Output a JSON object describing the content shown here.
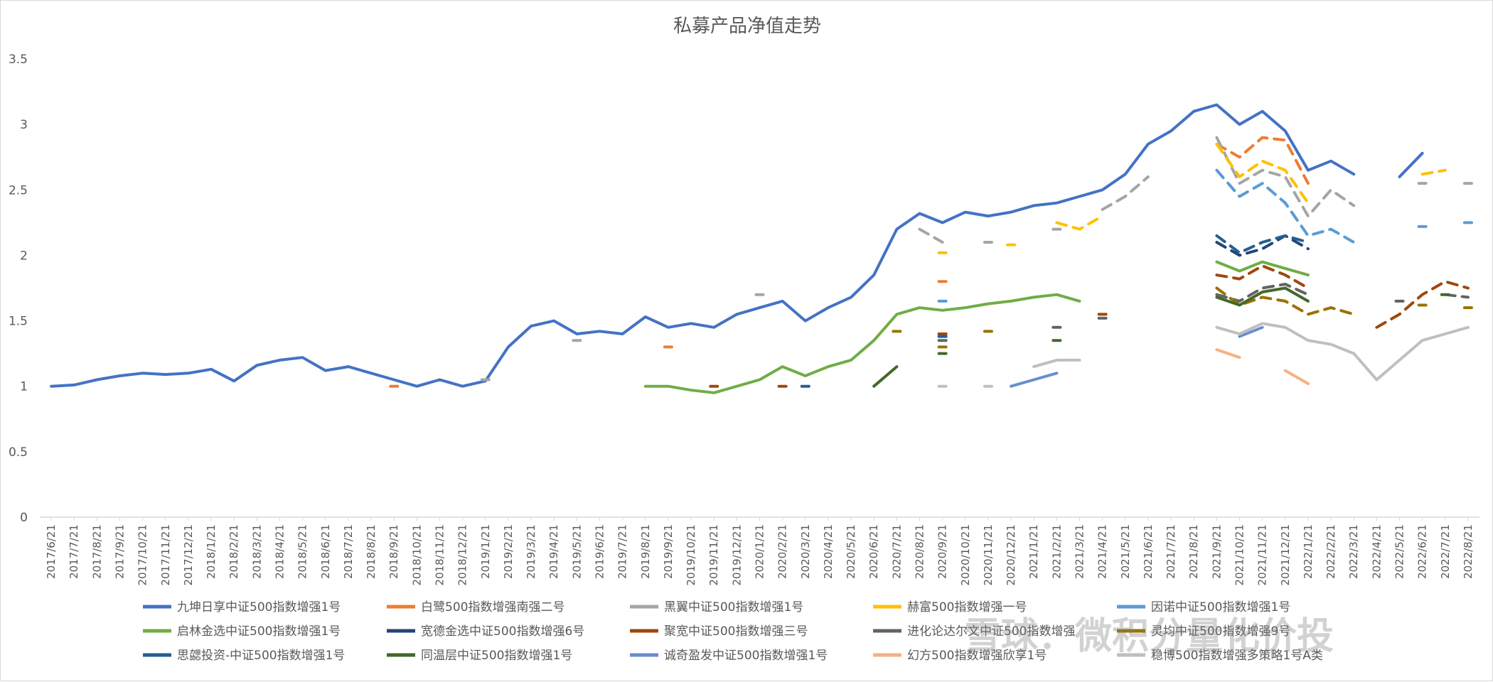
{
  "chart_data": {
    "type": "line",
    "title": "私募产品净值走势",
    "xlabel": "",
    "ylabel": "",
    "ylim": [
      0,
      3.5
    ],
    "yticks": [
      "0",
      "0.5",
      "1",
      "1.5",
      "2",
      "2.5",
      "3",
      "3.5"
    ],
    "grid": false,
    "legend_position": "bottom",
    "x": [
      "2017/6/21",
      "2017/7/21",
      "2017/8/21",
      "2017/9/21",
      "2017/10/21",
      "2017/11/21",
      "2017/12/21",
      "2018/1/21",
      "2018/2/21",
      "2018/3/21",
      "2018/4/21",
      "2018/5/21",
      "2018/6/21",
      "2018/7/21",
      "2018/8/21",
      "2018/9/21",
      "2018/10/21",
      "2018/11/21",
      "2018/12/21",
      "2019/1/21",
      "2019/2/21",
      "2019/3/21",
      "2019/4/21",
      "2019/5/21",
      "2019/6/21",
      "2019/7/21",
      "2019/8/21",
      "2019/9/21",
      "2019/10/21",
      "2019/11/21",
      "2019/12/21",
      "2020/1/21",
      "2020/2/21",
      "2020/3/21",
      "2020/4/21",
      "2020/5/21",
      "2020/6/21",
      "2020/7/21",
      "2020/8/21",
      "2020/9/21",
      "2020/10/21",
      "2020/11/21",
      "2020/12/21",
      "2021/1/21",
      "2021/2/21",
      "2021/3/21",
      "2021/4/21",
      "2021/5/21",
      "2021/6/21",
      "2021/7/21",
      "2021/8/21",
      "2021/9/21",
      "2021/10/21",
      "2021/11/21",
      "2021/12/21",
      "2022/1/21",
      "2022/2/21",
      "2022/3/21",
      "2022/4/21",
      "2022/5/21",
      "2022/6/21",
      "2022/7/21",
      "2022/8/21"
    ],
    "series": [
      {
        "name": "九坤日享中证500指数增强1号",
        "color": "#4472c4",
        "style": "solid",
        "values": [
          1.0,
          1.01,
          1.05,
          1.08,
          1.1,
          1.09,
          1.1,
          1.13,
          1.04,
          1.16,
          1.2,
          1.22,
          1.12,
          1.15,
          1.1,
          1.05,
          1.0,
          1.05,
          1.0,
          1.04,
          1.3,
          1.46,
          1.5,
          1.4,
          1.42,
          1.4,
          1.53,
          1.45,
          1.48,
          1.45,
          1.55,
          1.6,
          1.65,
          1.5,
          1.6,
          1.68,
          1.85,
          2.2,
          2.32,
          2.25,
          2.33,
          2.3,
          2.33,
          2.38,
          2.4,
          2.45,
          2.5,
          2.62,
          2.85,
          2.95,
          3.1,
          3.15,
          3.0,
          3.1,
          2.95,
          2.65,
          2.72,
          2.62,
          null,
          2.6,
          2.78,
          null,
          null
        ]
      },
      {
        "name": "白鹭500指数增强南强二号",
        "color": "#ed7d31",
        "style": "dashed",
        "values": [
          null,
          null,
          null,
          null,
          null,
          null,
          null,
          null,
          null,
          null,
          null,
          null,
          null,
          null,
          null,
          1.0,
          null,
          null,
          null,
          null,
          null,
          null,
          null,
          null,
          null,
          null,
          null,
          1.3,
          null,
          null,
          null,
          null,
          null,
          null,
          null,
          null,
          null,
          null,
          null,
          1.8,
          null,
          null,
          null,
          null,
          null,
          null,
          null,
          null,
          null,
          null,
          null,
          2.85,
          2.75,
          2.9,
          2.88,
          2.55,
          null,
          null,
          null,
          null,
          null,
          null,
          null
        ]
      },
      {
        "name": "黑翼中证500指数增强1号",
        "color": "#a5a5a5",
        "style": "dashed",
        "values": [
          null,
          null,
          null,
          null,
          null,
          null,
          null,
          null,
          null,
          null,
          null,
          null,
          null,
          null,
          null,
          null,
          null,
          null,
          null,
          1.05,
          null,
          null,
          null,
          1.35,
          null,
          null,
          null,
          null,
          null,
          null,
          null,
          1.7,
          null,
          null,
          null,
          null,
          null,
          null,
          2.2,
          2.1,
          null,
          2.1,
          null,
          null,
          2.2,
          null,
          2.35,
          2.45,
          2.6,
          null,
          null,
          2.9,
          2.55,
          2.65,
          2.6,
          2.3,
          2.5,
          2.38,
          null,
          null,
          2.55,
          null,
          2.55
        ]
      },
      {
        "name": "赫富500指数增强一号",
        "color": "#ffc000",
        "style": "dashed",
        "values": [
          null,
          null,
          null,
          null,
          null,
          null,
          null,
          null,
          null,
          null,
          null,
          null,
          null,
          null,
          null,
          null,
          null,
          null,
          null,
          null,
          null,
          null,
          null,
          null,
          null,
          null,
          null,
          null,
          null,
          null,
          null,
          null,
          null,
          null,
          null,
          null,
          null,
          null,
          null,
          2.02,
          null,
          null,
          2.08,
          null,
          2.25,
          2.2,
          2.3,
          null,
          null,
          null,
          null,
          2.85,
          2.6,
          2.72,
          2.65,
          2.4,
          null,
          null,
          null,
          null,
          2.62,
          2.65,
          null
        ]
      },
      {
        "name": "因诺中证500指数增强1号",
        "color": "#5b9bd5",
        "style": "dashed",
        "values": [
          null,
          null,
          null,
          null,
          null,
          null,
          null,
          null,
          null,
          null,
          null,
          null,
          null,
          null,
          null,
          null,
          null,
          null,
          null,
          null,
          null,
          null,
          null,
          null,
          null,
          null,
          null,
          null,
          null,
          null,
          null,
          null,
          null,
          null,
          null,
          null,
          null,
          null,
          null,
          1.65,
          null,
          null,
          null,
          null,
          null,
          null,
          null,
          null,
          null,
          null,
          null,
          2.65,
          2.45,
          2.55,
          2.4,
          2.15,
          2.2,
          2.1,
          null,
          null,
          2.22,
          null,
          2.25
        ]
      },
      {
        "name": "启林金选中证500指数增强1号",
        "color": "#70ad47",
        "style": "solid",
        "values": [
          null,
          null,
          null,
          null,
          null,
          null,
          null,
          null,
          null,
          null,
          null,
          null,
          null,
          null,
          null,
          null,
          null,
          null,
          null,
          null,
          null,
          null,
          null,
          null,
          null,
          null,
          1.0,
          1.0,
          0.97,
          0.95,
          1.0,
          1.05,
          1.15,
          1.08,
          1.15,
          1.2,
          1.35,
          1.55,
          1.6,
          1.58,
          1.6,
          1.63,
          1.65,
          1.68,
          1.7,
          1.65,
          null,
          null,
          null,
          null,
          null,
          1.95,
          1.88,
          1.95,
          1.9,
          1.85,
          null,
          null,
          null,
          null,
          null,
          null,
          null
        ]
      },
      {
        "name": "宽德金选中证500指数增强6号",
        "color": "#264478",
        "style": "dashed",
        "values": [
          null,
          null,
          null,
          null,
          null,
          null,
          null,
          null,
          null,
          null,
          null,
          null,
          null,
          null,
          null,
          null,
          null,
          null,
          null,
          null,
          null,
          null,
          null,
          null,
          null,
          null,
          null,
          null,
          null,
          null,
          null,
          null,
          null,
          null,
          null,
          null,
          null,
          null,
          null,
          1.4,
          null,
          null,
          null,
          null,
          null,
          null,
          null,
          null,
          null,
          null,
          null,
          2.1,
          2.0,
          2.05,
          2.15,
          2.05,
          null,
          null,
          null,
          null,
          null,
          null,
          null
        ]
      },
      {
        "name": "聚宽中证500指数增强三号",
        "color": "#9e480e",
        "style": "dashed",
        "values": [
          null,
          null,
          null,
          null,
          null,
          null,
          null,
          null,
          null,
          null,
          null,
          null,
          null,
          null,
          null,
          null,
          null,
          null,
          null,
          null,
          null,
          null,
          null,
          null,
          null,
          null,
          null,
          null,
          null,
          1.0,
          null,
          null,
          1.0,
          null,
          null,
          null,
          null,
          null,
          null,
          1.4,
          null,
          null,
          null,
          null,
          null,
          null,
          1.55,
          null,
          null,
          null,
          null,
          1.85,
          1.82,
          1.92,
          1.85,
          1.75,
          null,
          null,
          1.45,
          1.55,
          1.7,
          1.8,
          1.75
        ]
      },
      {
        "name": "进化论达尔文中证500指数增强",
        "color": "#636363",
        "style": "dashed",
        "values": [
          null,
          null,
          null,
          null,
          null,
          null,
          null,
          null,
          null,
          null,
          null,
          null,
          null,
          null,
          null,
          null,
          null,
          null,
          null,
          null,
          null,
          null,
          null,
          null,
          null,
          null,
          null,
          null,
          null,
          null,
          null,
          null,
          null,
          null,
          null,
          null,
          null,
          null,
          null,
          1.35,
          null,
          null,
          null,
          null,
          1.45,
          null,
          1.52,
          null,
          null,
          null,
          null,
          1.7,
          1.65,
          1.75,
          1.78,
          1.7,
          null,
          null,
          null,
          1.65,
          null,
          1.7,
          1.68
        ]
      },
      {
        "name": "灵均中证500指数增强9号",
        "color": "#997300",
        "style": "dashed",
        "values": [
          null,
          null,
          null,
          null,
          null,
          null,
          null,
          null,
          null,
          null,
          null,
          null,
          null,
          null,
          null,
          null,
          null,
          null,
          null,
          null,
          null,
          null,
          null,
          null,
          null,
          null,
          null,
          null,
          null,
          null,
          null,
          null,
          null,
          null,
          null,
          null,
          null,
          1.42,
          null,
          1.3,
          null,
          1.42,
          null,
          null,
          null,
          null,
          null,
          null,
          null,
          null,
          null,
          1.75,
          1.62,
          1.68,
          1.65,
          1.55,
          1.6,
          1.55,
          null,
          null,
          1.62,
          null,
          1.6
        ]
      },
      {
        "name": "思勰投资-中证500指数增强1号",
        "color": "#255e91",
        "style": "dashed",
        "values": [
          null,
          null,
          null,
          null,
          null,
          null,
          null,
          null,
          null,
          null,
          null,
          null,
          null,
          null,
          null,
          null,
          null,
          null,
          null,
          null,
          null,
          null,
          null,
          null,
          null,
          null,
          null,
          null,
          null,
          null,
          null,
          null,
          null,
          1.0,
          null,
          null,
          null,
          null,
          null,
          1.38,
          null,
          null,
          null,
          null,
          null,
          null,
          null,
          null,
          null,
          null,
          null,
          2.15,
          2.02,
          2.1,
          2.15,
          2.1,
          null,
          null,
          null,
          null,
          null,
          null,
          null
        ]
      },
      {
        "name": "同温层中证500指数增强1号",
        "color": "#43682b",
        "style": "solid",
        "values": [
          null,
          null,
          null,
          null,
          null,
          null,
          null,
          null,
          null,
          null,
          null,
          null,
          null,
          null,
          null,
          null,
          null,
          null,
          null,
          null,
          null,
          null,
          null,
          null,
          null,
          null,
          null,
          null,
          null,
          null,
          null,
          null,
          null,
          null,
          null,
          null,
          1.0,
          1.15,
          null,
          1.25,
          null,
          null,
          null,
          null,
          1.35,
          null,
          null,
          null,
          null,
          null,
          null,
          1.68,
          1.62,
          1.72,
          1.75,
          1.65,
          null,
          null,
          null,
          null,
          null,
          1.7,
          null
        ]
      },
      {
        "name": "诚奇盈发中证500指数增强1号",
        "color": "#698ed0",
        "style": "solid",
        "values": [
          null,
          null,
          null,
          null,
          null,
          null,
          null,
          null,
          null,
          null,
          null,
          null,
          null,
          null,
          null,
          null,
          null,
          null,
          null,
          null,
          null,
          null,
          null,
          null,
          null,
          null,
          null,
          null,
          null,
          null,
          null,
          null,
          null,
          null,
          null,
          null,
          null,
          null,
          null,
          null,
          null,
          null,
          1.0,
          1.05,
          1.1,
          null,
          null,
          null,
          null,
          null,
          null,
          null,
          1.38,
          1.45,
          null,
          null,
          null,
          null,
          null,
          null,
          null,
          null,
          null
        ]
      },
      {
        "name": "幻方500指数增强欣享1号",
        "color": "#f4b183",
        "style": "solid",
        "values": [
          null,
          null,
          null,
          null,
          null,
          null,
          null,
          null,
          null,
          null,
          null,
          null,
          null,
          null,
          null,
          null,
          null,
          null,
          null,
          null,
          null,
          null,
          null,
          null,
          null,
          null,
          null,
          null,
          null,
          null,
          null,
          null,
          null,
          null,
          null,
          null,
          null,
          null,
          null,
          null,
          null,
          null,
          null,
          null,
          null,
          null,
          null,
          null,
          null,
          null,
          null,
          1.28,
          1.22,
          null,
          1.12,
          1.02,
          null,
          null,
          null,
          null,
          null,
          null,
          null
        ]
      },
      {
        "name": "稳博500指数增强多策略1号A类",
        "color": "#bfbfbf",
        "style": "solid",
        "values": [
          null,
          null,
          null,
          null,
          null,
          null,
          null,
          null,
          null,
          null,
          null,
          null,
          null,
          null,
          null,
          null,
          null,
          null,
          null,
          null,
          null,
          null,
          null,
          null,
          null,
          null,
          null,
          null,
          null,
          null,
          null,
          null,
          null,
          null,
          null,
          null,
          null,
          null,
          null,
          1.0,
          null,
          1.0,
          null,
          1.15,
          1.2,
          1.2,
          null,
          null,
          null,
          null,
          null,
          1.45,
          1.4,
          1.48,
          1.45,
          1.35,
          1.32,
          1.25,
          1.05,
          1.2,
          1.35,
          1.4,
          1.45
        ]
      }
    ]
  },
  "watermark": "雪球：微积分量化价投"
}
